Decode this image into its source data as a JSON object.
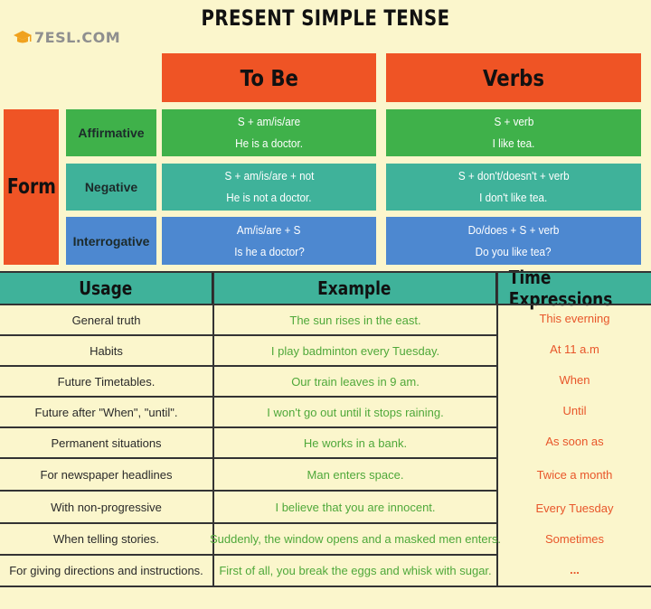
{
  "title": "PRESENT SIMPLE TENSE",
  "logo": {
    "text": "7ESL.COM",
    "icon": "graduation-cap-icon"
  },
  "colors": {
    "header": "#ef5425",
    "affirmative": "#3fb14a",
    "negative": "#3fb29a",
    "interrogative": "#4d88d0",
    "background": "#fbf6cc",
    "example_text": "#4fa83a",
    "time_text": "#e8562a"
  },
  "form_table": {
    "form_label": "Form",
    "headers": {
      "to_be": "To Be",
      "verbs": "Verbs"
    },
    "rows": [
      {
        "label": "Affirmative",
        "to_be_formula": "S + am/is/are",
        "to_be_example": "He is a doctor.",
        "verbs_formula": "S + verb",
        "verbs_example": "I like tea."
      },
      {
        "label": "Negative",
        "to_be_formula": "S + am/is/are + not",
        "to_be_example": "He is not a doctor.",
        "verbs_formula": "S + don't/doesn't + verb",
        "verbs_example": "I don't like tea."
      },
      {
        "label": "Interrogative",
        "to_be_formula": "Am/is/are + S",
        "to_be_example": "Is he a doctor?",
        "verbs_formula": "Do/does + S + verb",
        "verbs_example": "Do you like tea?"
      }
    ]
  },
  "usage_table": {
    "headers": {
      "usage": "Usage",
      "example": "Example",
      "time": "Time Expressions"
    },
    "rows": [
      {
        "usage": "General truth",
        "example": "The sun rises in the east.",
        "time": "This everning"
      },
      {
        "usage": "Habits",
        "example": "I play badminton every Tuesday.",
        "time": "At 11 a.m"
      },
      {
        "usage": "Future Timetables.",
        "example": "Our train leaves in 9 am.",
        "time": "When"
      },
      {
        "usage": "Future after \"When\", \"until\".",
        "example": "I won't go out until it stops raining.",
        "time": "Until"
      },
      {
        "usage": "Permanent situations",
        "example": "He works in a bank.",
        "time": "As soon as"
      },
      {
        "usage": "For newspaper headlines",
        "example": "Man enters space.",
        "time": "Twice a month"
      },
      {
        "usage": "With non-progressive",
        "example": "I believe that you are innocent.",
        "time": "Every Tuesday"
      },
      {
        "usage": "When telling stories.",
        "example": "Suddenly, the window opens and a masked men enters.",
        "time": "Sometimes"
      },
      {
        "usage": "For giving directions and instructions.",
        "example": "First of all, you break the eggs and whisk with sugar.",
        "time": "..."
      }
    ]
  }
}
